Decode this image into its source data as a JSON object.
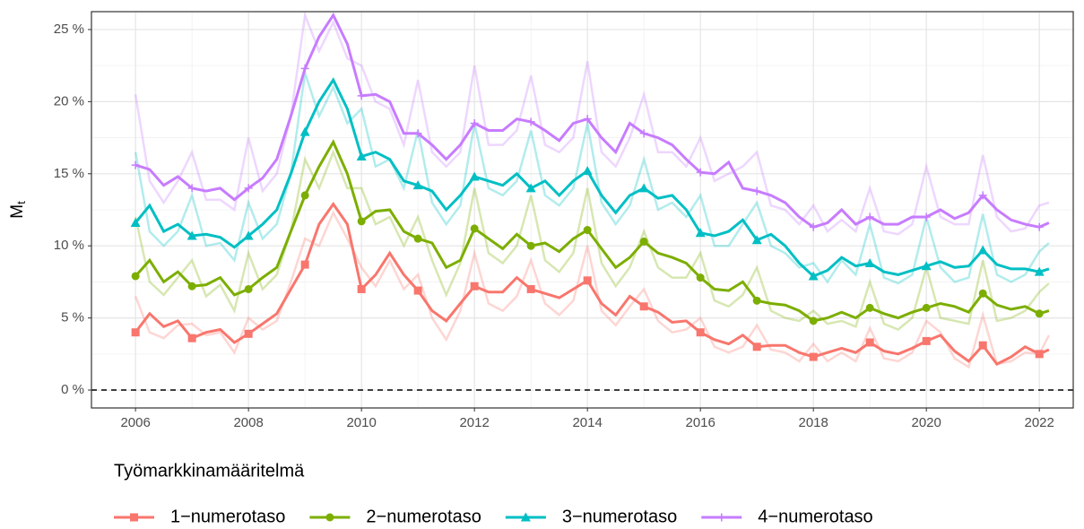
{
  "chart_data": {
    "type": "line",
    "ylabel": "M",
    "ylabel_subscript": "t",
    "legend_title": "Työmarkkinamääritelmä",
    "legend_position": "bottom",
    "grid": true,
    "hline": 0,
    "xlim": [
      2005.22,
      2022.6
    ],
    "ylim": [
      -1.24,
      26.24
    ],
    "xticks": [
      2006,
      2008,
      2010,
      2012,
      2014,
      2016,
      2018,
      2020,
      2022
    ],
    "yticks": [
      {
        "value": 0,
        "label": "0 %"
      },
      {
        "value": 5,
        "label": "5 %"
      },
      {
        "value": 10,
        "label": "10 %"
      },
      {
        "value": 15,
        "label": "15 %"
      },
      {
        "value": 20,
        "label": "20 %"
      },
      {
        "value": 25,
        "label": "25 %"
      }
    ],
    "x": [
      2006,
      2006.25,
      2006.5,
      2006.75,
      2007,
      2007.25,
      2007.5,
      2007.75,
      2008,
      2008.25,
      2008.5,
      2008.75,
      2009,
      2009.25,
      2009.5,
      2009.75,
      2010,
      2010.25,
      2010.5,
      2010.75,
      2011,
      2011.25,
      2011.5,
      2011.75,
      2012,
      2012.25,
      2012.5,
      2012.75,
      2013,
      2013.25,
      2013.5,
      2013.75,
      2014,
      2014.25,
      2014.5,
      2014.75,
      2015,
      2015.25,
      2015.5,
      2015.75,
      2016,
      2016.25,
      2016.5,
      2016.75,
      2017,
      2017.25,
      2017.5,
      2017.75,
      2018,
      2018.25,
      2018.5,
      2018.75,
      2019,
      2019.25,
      2019.5,
      2019.75,
      2020,
      2020.25,
      2020.5,
      2020.75,
      2021,
      2021.25,
      2021.5,
      2021.75,
      2022,
      2022.17
    ],
    "series": [
      {
        "name": "1−numerotaso",
        "color": "#F8766D",
        "shape": "square",
        "values": [
          4.0,
          5.3,
          4.4,
          4.8,
          3.6,
          4.0,
          4.2,
          3.3,
          3.9,
          4.6,
          5.3,
          7.0,
          8.7,
          11.5,
          12.9,
          11.5,
          7.0,
          8.0,
          9.5,
          8.0,
          6.9,
          5.5,
          4.8,
          6.0,
          7.2,
          6.8,
          6.8,
          7.8,
          7.0,
          6.7,
          6.4,
          7.0,
          7.6,
          6.0,
          5.2,
          6.5,
          5.8,
          5.4,
          4.7,
          4.8,
          4.0,
          3.5,
          3.2,
          3.8,
          3.0,
          3.1,
          3.1,
          2.6,
          2.3,
          2.6,
          2.9,
          2.6,
          3.3,
          2.7,
          2.5,
          2.9,
          3.4,
          3.8,
          2.7,
          2.0,
          3.1,
          1.8,
          2.3,
          3.0,
          2.5,
          2.8
        ],
        "raw_values": [
          6.5,
          4.0,
          3.6,
          4.5,
          4.6,
          3.8,
          4.0,
          2.6,
          5.0,
          4.2,
          4.8,
          7.5,
          10.5,
          10.0,
          12.3,
          10.5,
          8.5,
          7.2,
          9.0,
          7.0,
          8.0,
          5.0,
          3.5,
          5.5,
          9.5,
          6.0,
          5.5,
          6.5,
          9.0,
          6.0,
          5.2,
          6.2,
          10.0,
          5.5,
          4.5,
          5.8,
          7.0,
          4.8,
          4.0,
          4.2,
          5.0,
          3.0,
          2.6,
          3.0,
          4.5,
          2.8,
          2.6,
          2.0,
          3.2,
          2.0,
          2.6,
          2.0,
          4.3,
          2.2,
          2.0,
          2.6,
          4.8,
          4.0,
          2.2,
          1.6,
          5.2,
          1.8,
          2.0,
          2.6,
          2.5,
          3.8
        ]
      },
      {
        "name": "2−numerotaso",
        "color": "#7CAE00",
        "shape": "circle",
        "values": [
          7.9,
          9.0,
          7.5,
          8.2,
          7.2,
          7.3,
          7.8,
          6.6,
          7.0,
          7.8,
          8.5,
          11.0,
          13.5,
          15.5,
          17.2,
          15.0,
          11.7,
          12.4,
          12.5,
          11.0,
          10.5,
          10.2,
          8.5,
          9.0,
          11.2,
          10.5,
          9.8,
          10.8,
          10.0,
          10.2,
          9.6,
          10.5,
          11.1,
          9.8,
          8.5,
          9.2,
          10.3,
          9.5,
          9.2,
          8.8,
          7.8,
          7.0,
          6.9,
          7.5,
          6.2,
          6.0,
          5.9,
          5.5,
          4.8,
          5.0,
          5.4,
          5.0,
          5.7,
          5.3,
          5.0,
          5.4,
          5.7,
          6.0,
          5.8,
          5.4,
          6.7,
          5.9,
          5.6,
          5.8,
          5.3,
          5.5
        ],
        "raw_values": [
          12.0,
          7.5,
          6.6,
          7.8,
          9.0,
          6.5,
          7.3,
          5.5,
          9.5,
          7.0,
          8.0,
          11.0,
          16.0,
          14.0,
          16.5,
          14.0,
          14.0,
          11.5,
          12.0,
          10.0,
          12.0,
          9.0,
          6.6,
          8.8,
          14.0,
          9.5,
          8.8,
          10.0,
          13.5,
          9.0,
          8.2,
          9.5,
          14.0,
          8.8,
          7.2,
          8.5,
          11.0,
          8.5,
          7.8,
          7.8,
          9.5,
          6.2,
          5.8,
          6.6,
          8.5,
          5.5,
          5.0,
          4.8,
          5.5,
          4.6,
          4.8,
          4.4,
          7.5,
          4.6,
          4.2,
          5.0,
          8.5,
          5.0,
          4.8,
          4.6,
          9.0,
          4.8,
          5.0,
          5.5,
          6.8,
          7.4
        ]
      },
      {
        "name": "3−numerotaso",
        "color": "#00BFC4",
        "shape": "triangle",
        "values": [
          11.6,
          12.8,
          11.0,
          11.5,
          10.7,
          10.8,
          10.6,
          9.9,
          10.7,
          11.5,
          12.5,
          15.0,
          17.9,
          20.0,
          21.5,
          19.5,
          16.2,
          16.5,
          16.0,
          14.5,
          14.2,
          13.8,
          12.5,
          13.5,
          14.8,
          14.5,
          14.2,
          15.0,
          14.0,
          14.5,
          13.5,
          14.5,
          15.2,
          13.5,
          12.3,
          13.5,
          14.0,
          13.3,
          13.5,
          12.5,
          10.9,
          10.7,
          11.0,
          11.8,
          10.4,
          10.8,
          10.0,
          8.8,
          7.9,
          8.3,
          9.2,
          8.6,
          8.8,
          8.2,
          8.0,
          8.3,
          8.6,
          8.9,
          8.5,
          8.6,
          9.7,
          8.7,
          8.4,
          8.4,
          8.2,
          8.4
        ],
        "raw_values": [
          16.5,
          11.0,
          10.0,
          11.0,
          13.5,
          10.0,
          10.2,
          9.0,
          13.0,
          10.5,
          11.5,
          15.0,
          22.0,
          19.0,
          21.0,
          18.5,
          19.5,
          15.5,
          16.0,
          14.0,
          18.0,
          13.0,
          11.5,
          12.8,
          18.5,
          14.0,
          13.5,
          14.5,
          18.0,
          13.5,
          12.8,
          14.0,
          18.5,
          13.0,
          11.5,
          12.8,
          16.0,
          12.5,
          13.0,
          12.0,
          13.5,
          10.0,
          10.0,
          11.5,
          13.0,
          10.0,
          9.5,
          8.5,
          8.8,
          7.5,
          9.0,
          8.0,
          11.5,
          7.8,
          7.4,
          8.0,
          12.0,
          8.5,
          7.5,
          7.8,
          12.2,
          8.0,
          7.5,
          8.0,
          9.6,
          10.2
        ]
      },
      {
        "name": "4−numerotaso",
        "color": "#C77CFF",
        "shape": "cross",
        "values": [
          15.6,
          15.3,
          14.2,
          14.8,
          14.0,
          13.8,
          14.0,
          13.2,
          14.0,
          14.7,
          16.0,
          19.0,
          22.3,
          24.5,
          26.0,
          24.0,
          20.4,
          20.5,
          20.0,
          17.8,
          17.8,
          17.0,
          16.0,
          17.0,
          18.5,
          18.0,
          18.0,
          18.8,
          18.6,
          18.0,
          17.3,
          18.5,
          18.8,
          17.5,
          16.5,
          18.5,
          17.8,
          17.5,
          17.0,
          16.0,
          15.1,
          15.0,
          15.8,
          14.0,
          13.8,
          13.5,
          13.0,
          12.0,
          11.3,
          11.6,
          12.5,
          11.5,
          12.0,
          11.5,
          11.5,
          12.0,
          12.0,
          12.5,
          11.9,
          12.3,
          13.5,
          12.5,
          11.8,
          11.5,
          11.3,
          11.6
        ],
        "raw_values": [
          20.5,
          14.5,
          13.0,
          14.5,
          16.5,
          13.2,
          13.2,
          12.5,
          17.5,
          13.8,
          15.0,
          19.0,
          26.0,
          23.5,
          25.5,
          23.0,
          22.5,
          20.0,
          19.5,
          17.0,
          21.5,
          16.5,
          15.5,
          16.5,
          22.5,
          17.0,
          17.0,
          18.0,
          21.8,
          17.0,
          16.5,
          17.5,
          22.8,
          16.5,
          15.5,
          17.5,
          20.5,
          16.5,
          16.5,
          15.5,
          17.5,
          14.5,
          15.0,
          15.5,
          16.5,
          12.8,
          12.5,
          11.5,
          12.8,
          11.0,
          11.8,
          11.0,
          14.0,
          11.0,
          10.8,
          11.5,
          15.5,
          12.0,
          11.5,
          11.5,
          16.3,
          12.0,
          11.0,
          11.2,
          12.8,
          13.0
        ]
      }
    ]
  }
}
